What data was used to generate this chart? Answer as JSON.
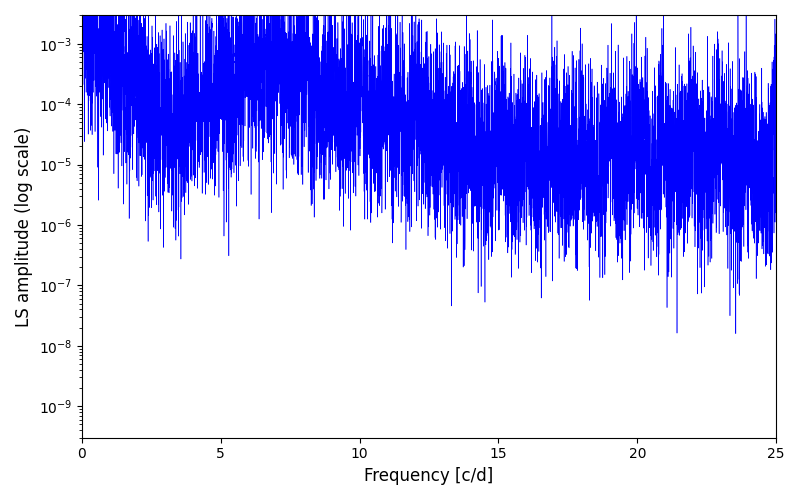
{
  "title": "",
  "xlabel": "Frequency [c/d]",
  "ylabel": "LS amplitude (log scale)",
  "xlim": [
    0,
    25
  ],
  "ylim": [
    3e-10,
    0.003
  ],
  "line_color": "#0000ff",
  "line_width": 0.4,
  "freq_max": 25.0,
  "n_points": 8000,
  "seed": 123,
  "background_color": "#ffffff",
  "figsize": [
    8.0,
    5.0
  ],
  "dpi": 100
}
